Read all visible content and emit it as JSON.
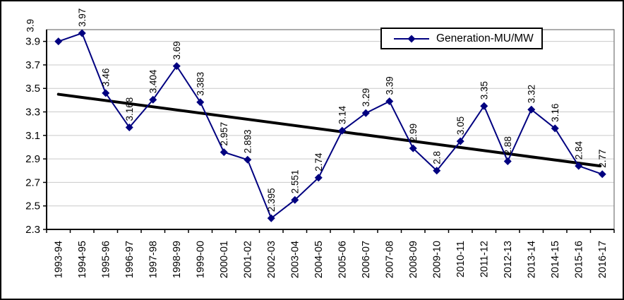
{
  "chart_data": {
    "type": "line",
    "title": "",
    "xlabel": "",
    "ylabel": "",
    "grid": true,
    "legend_position": "top-right",
    "categories": [
      "1993-94",
      "1994-95",
      "1995-96",
      "1996-97",
      "1997-98",
      "1998-99",
      "1999-00",
      "2000-01",
      "2001-02",
      "2002-03",
      "2003-04",
      "2004-05",
      "2005-06",
      "2006-07",
      "2007-08",
      "2008-09",
      "2009-10",
      "2010-11",
      "2011-12",
      "2012-13",
      "2013-14",
      "2014-15",
      "2015-16",
      "2016-17"
    ],
    "series": [
      {
        "name": "Generation-MU/MW",
        "values": [
          3.9,
          3.97,
          3.46,
          3.168,
          3.404,
          3.69,
          3.383,
          2.957,
          2.893,
          2.395,
          2.551,
          2.74,
          3.14,
          3.29,
          3.39,
          2.99,
          2.8,
          3.05,
          3.35,
          2.88,
          3.32,
          3.16,
          2.84,
          2.77
        ],
        "data_labels": [
          "3.9",
          "3.97",
          "3.46",
          "3.168",
          "3.404",
          "3.69",
          "3.383",
          "2.957",
          "2.893",
          "2.395",
          "2.551",
          "2.74",
          "3.14",
          "3.29",
          "3.39",
          "2.99",
          "2.8",
          "3.05",
          "3.35",
          "2.88",
          "3.32",
          "3.16",
          "2.84",
          "2.77"
        ]
      }
    ],
    "y_ticks": [
      "3.9",
      "3.7",
      "3.5",
      "3.3",
      "3.1",
      "2.9",
      "2.7",
      "2.5",
      "2.3"
    ],
    "y_tick_values": [
      3.9,
      3.7,
      3.5,
      3.3,
      3.1,
      2.9,
      2.7,
      2.5,
      2.3
    ],
    "ylim": [
      2.3,
      4.0
    ],
    "trendline": {
      "start_value": 3.45,
      "end_value": 2.84
    },
    "colors": {
      "series_line": "#000080",
      "marker": "#000080",
      "trend_line": "#000000",
      "gridline": "#c9c9c9",
      "plot_border": "#808080",
      "axis_line": "#000000",
      "text": "#000000",
      "background": "#ffffff"
    }
  }
}
